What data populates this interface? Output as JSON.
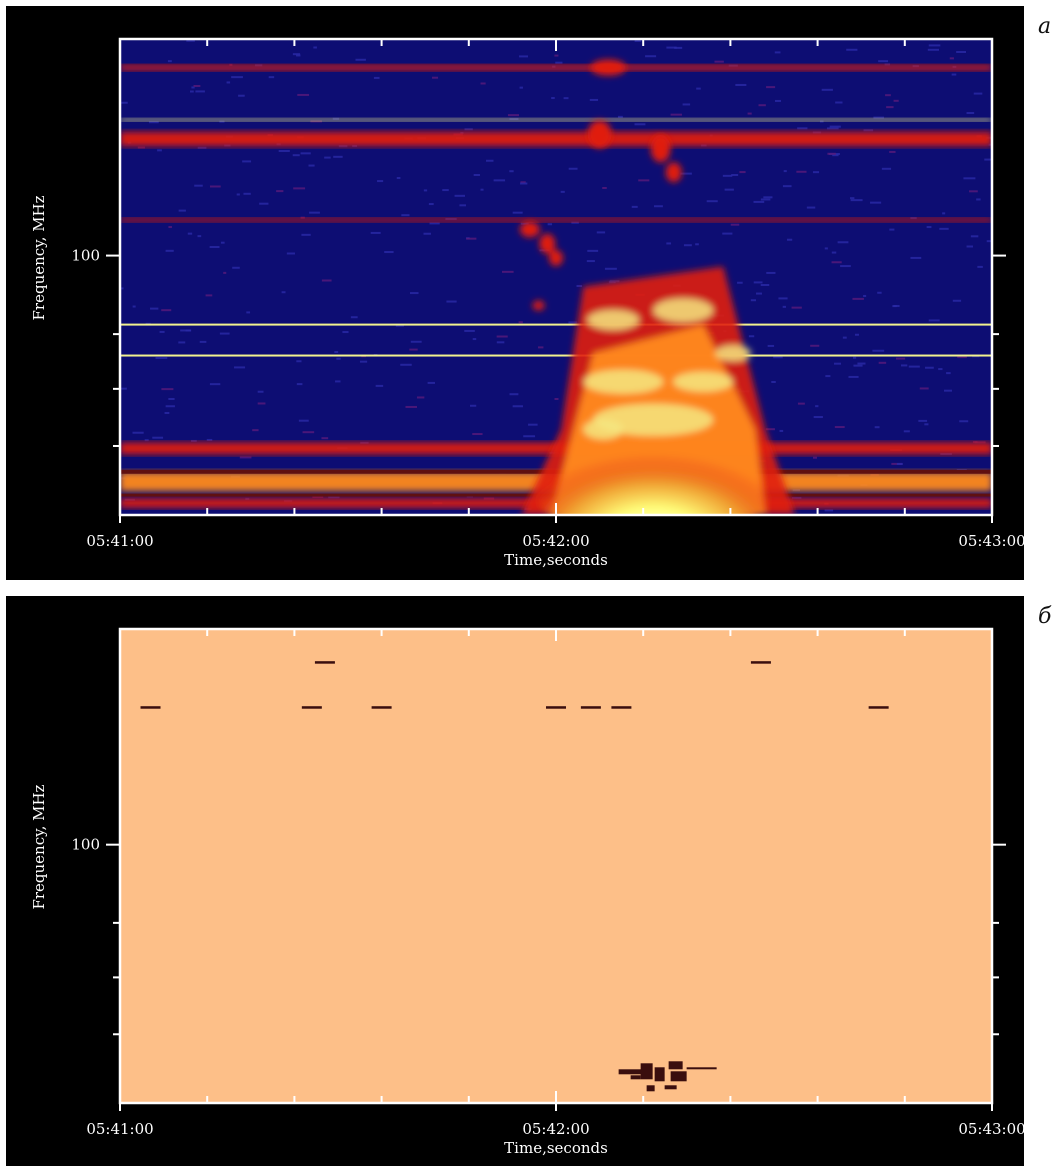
{
  "chart_data": [
    {
      "panel_label": "a",
      "type": "heatmap",
      "title": "",
      "xlabel": "Time,seconds",
      "ylabel": "Frequency, MHz",
      "x_tick_labels": [
        "05:41:00",
        "05:42:00",
        "05:43:00"
      ],
      "y_tick_labels": [
        "100"
      ],
      "colors": {
        "background": "#0d0d73",
        "low": "#2a2aa8",
        "mid": "#e01e0a",
        "high": "#ff8a1e",
        "peak": "#ffff90"
      },
      "features": [
        {
          "kind": "band",
          "level": "mid",
          "y_frac": 0.06,
          "thickness": 0.012
        },
        {
          "kind": "band",
          "level": "peak",
          "y_frac": 0.17,
          "thickness": 0.006
        },
        {
          "kind": "band",
          "level": "mid",
          "y_frac": 0.21,
          "thickness": 0.03
        },
        {
          "kind": "band",
          "level": "mid",
          "y_frac": 0.38,
          "thickness": 0.008
        },
        {
          "kind": "band",
          "level": "peak",
          "y_frac": 0.6,
          "thickness": 0.003
        },
        {
          "kind": "band",
          "level": "peak",
          "y_frac": 0.665,
          "thickness": 0.003
        },
        {
          "kind": "band",
          "level": "mid",
          "y_frac": 0.86,
          "thickness": 0.025
        },
        {
          "kind": "band",
          "level": "high",
          "y_frac": 0.93,
          "thickness": 0.04
        },
        {
          "kind": "band",
          "level": "mid",
          "y_frac": 0.975,
          "thickness": 0.02
        },
        {
          "kind": "burst",
          "t_start": 0.46,
          "t_peak": 0.6,
          "t_end": 0.74,
          "f_top": 0.52
        }
      ]
    },
    {
      "panel_label": "б",
      "type": "heatmap",
      "title": "",
      "xlabel": "Time,seconds",
      "ylabel": "Frequency, MHz",
      "x_tick_labels": [
        "05:41:00",
        "05:42:00",
        "05:43:00"
      ],
      "y_tick_labels": [
        "100"
      ],
      "colors": {
        "background": "#fdbf88",
        "mark": "#3a0e0e"
      },
      "features": [
        {
          "kind": "dash",
          "t": 0.235,
          "y_frac": 0.07
        },
        {
          "kind": "dash",
          "t": 0.735,
          "y_frac": 0.07
        },
        {
          "kind": "dash",
          "t": 0.035,
          "y_frac": 0.165
        },
        {
          "kind": "dash",
          "t": 0.22,
          "y_frac": 0.165
        },
        {
          "kind": "dash",
          "t": 0.3,
          "y_frac": 0.165
        },
        {
          "kind": "dash",
          "t": 0.5,
          "y_frac": 0.165
        },
        {
          "kind": "dash",
          "t": 0.54,
          "y_frac": 0.165
        },
        {
          "kind": "dash",
          "t": 0.575,
          "y_frac": 0.165
        },
        {
          "kind": "dash",
          "t": 0.87,
          "y_frac": 0.165
        },
        {
          "kind": "cluster",
          "t": 0.62,
          "y_frac": 0.95
        }
      ]
    }
  ]
}
